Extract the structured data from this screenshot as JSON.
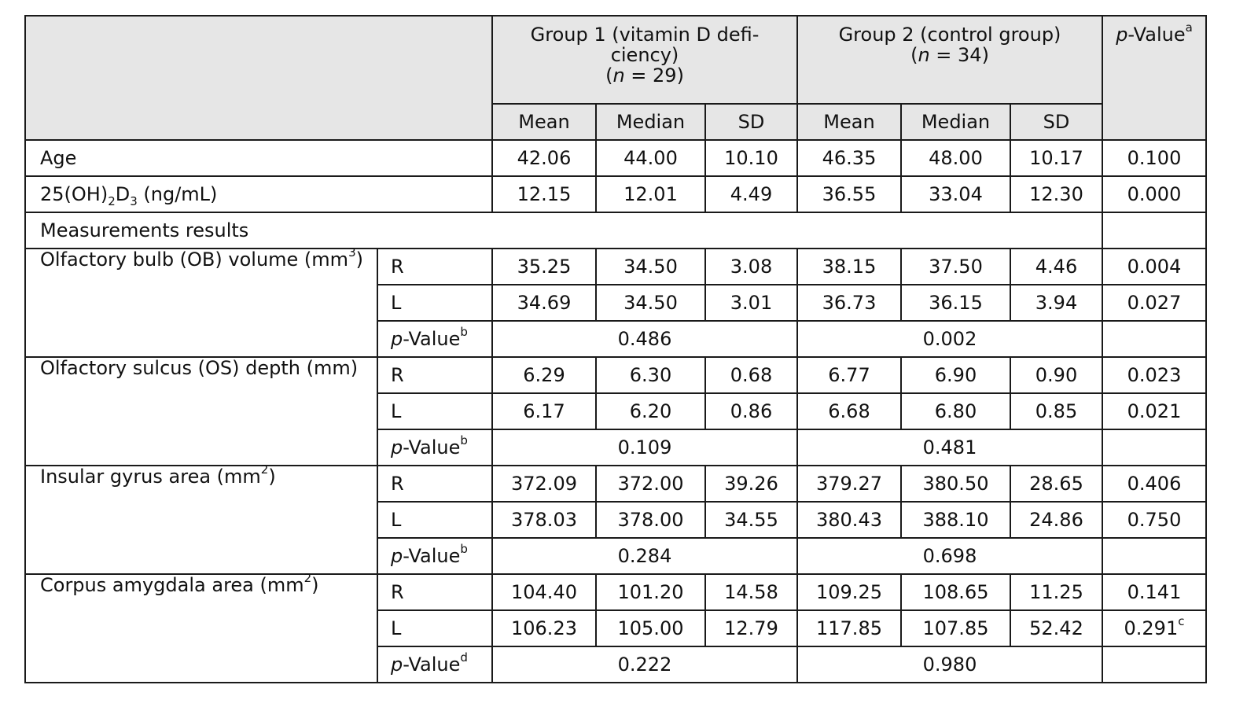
{
  "header": {
    "group1_title": "Group 1 (vitamin D defi-",
    "group1_title_line2": "ciency)",
    "group1_n": "(n = 29)",
    "group2_title": "Group 2 (control group)",
    "group2_n": "(n = 34)",
    "pvalue_label": "p-Value",
    "pvalue_sup": "a",
    "mean": "Mean",
    "median": "Median",
    "sd": "SD"
  },
  "rows": {
    "age": {
      "label": "Age",
      "g1_mean": "42.06",
      "g1_median": "44.00",
      "g1_sd": "10.10",
      "g2_mean": "46.35",
      "g2_median": "48.00",
      "g2_sd": "10.17",
      "p": "0.100"
    },
    "vitd": {
      "label_pre": "25(OH)",
      "label_sub1": "2",
      "label_mid": "D",
      "label_sub2": "3",
      "label_post": " (ng/mL)",
      "g1_mean": "12.15",
      "g1_median": "12.01",
      "g1_sd": "4.49",
      "g2_mean": "36.55",
      "g2_median": "33.04",
      "g2_sd": "12.30",
      "p": "0.000"
    },
    "section_title": "Measurements results"
  },
  "measures": [
    {
      "label": "Olfactory bulb (OB) volume (mm",
      "label_sup": "3",
      "label_post": ")",
      "r": {
        "side": "R",
        "g1_mean": "35.25",
        "g1_median": "34.50",
        "g1_sd": "3.08",
        "g2_mean": "38.15",
        "g2_median": "37.50",
        "g2_sd": "4.46",
        "p": "0.004",
        "p_sup": ""
      },
      "l": {
        "side": "L",
        "g1_mean": "34.69",
        "g1_median": "34.50",
        "g1_sd": "3.01",
        "g2_mean": "36.73",
        "g2_median": "36.15",
        "g2_sd": "3.94",
        "p": "0.027",
        "p_sup": ""
      },
      "pv": {
        "label": "p-Value",
        "sup": "b",
        "g1": "0.486",
        "g2": "0.002"
      }
    },
    {
      "label": "Olfactory sulcus (OS) depth (mm)",
      "label_sup": "",
      "label_post": "",
      "r": {
        "side": "R",
        "g1_mean": "6.29",
        "g1_median": "6.30",
        "g1_sd": "0.68",
        "g2_mean": "6.77",
        "g2_median": "6.90",
        "g2_sd": "0.90",
        "p": "0.023",
        "p_sup": ""
      },
      "l": {
        "side": "L",
        "g1_mean": "6.17",
        "g1_median": "6.20",
        "g1_sd": "0.86",
        "g2_mean": "6.68",
        "g2_median": "6.80",
        "g2_sd": "0.85",
        "p": "0.021",
        "p_sup": ""
      },
      "pv": {
        "label": "p-Value",
        "sup": "b",
        "g1": "0.109",
        "g2": "0.481"
      }
    },
    {
      "label": "Insular gyrus area (mm",
      "label_sup": "2",
      "label_post": ")",
      "r": {
        "side": "R",
        "g1_mean": "372.09",
        "g1_median": "372.00",
        "g1_sd": "39.26",
        "g2_mean": "379.27",
        "g2_median": "380.50",
        "g2_sd": "28.65",
        "p": "0.406",
        "p_sup": ""
      },
      "l": {
        "side": "L",
        "g1_mean": "378.03",
        "g1_median": "378.00",
        "g1_sd": "34.55",
        "g2_mean": "380.43",
        "g2_median": "388.10",
        "g2_sd": "24.86",
        "p": "0.750",
        "p_sup": ""
      },
      "pv": {
        "label": "p-Value",
        "sup": "b",
        "g1": "0.284",
        "g2": "0.698"
      }
    },
    {
      "label": "Corpus amygdala area (mm",
      "label_sup": "2",
      "label_post": ")",
      "r": {
        "side": "R",
        "g1_mean": "104.40",
        "g1_median": "101.20",
        "g1_sd": "14.58",
        "g2_mean": "109.25",
        "g2_median": "108.65",
        "g2_sd": "11.25",
        "p": "0.141",
        "p_sup": ""
      },
      "l": {
        "side": "L",
        "g1_mean": "106.23",
        "g1_median": "105.00",
        "g1_sd": "12.79",
        "g2_mean": "117.85",
        "g2_median": "107.85",
        "g2_sd": "52.42",
        "p": "0.291",
        "p_sup": "c"
      },
      "pv": {
        "label": "p-Value",
        "sup": "d",
        "g1": "0.222",
        "g2": "0.980"
      }
    }
  ]
}
